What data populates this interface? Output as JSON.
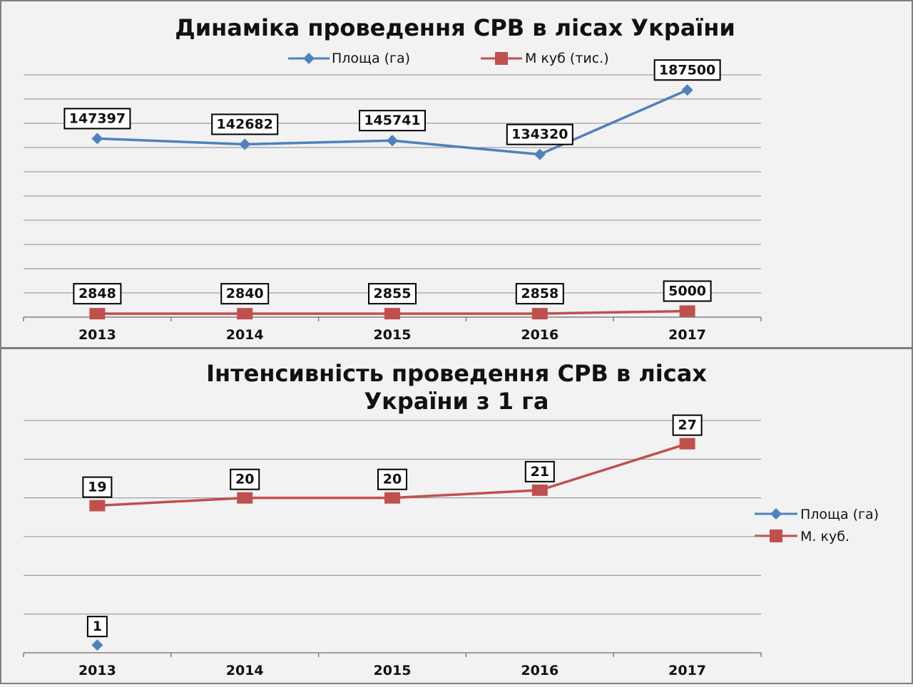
{
  "chart_data": [
    {
      "type": "line",
      "title": "Динаміка проведення СРВ в лісах України",
      "categories": [
        "2013",
        "2014",
        "2015",
        "2016",
        "2017"
      ],
      "series": [
        {
          "name": "Площа (га)",
          "values": [
            147397,
            142682,
            145741,
            134320,
            187500
          ],
          "labels": [
            "147397",
            "142682",
            "145741",
            "134320",
            "187500"
          ],
          "color": "#4f81bd",
          "marker": "diamond"
        },
        {
          "name": "М куб (тис.)",
          "values": [
            2848,
            2840,
            2855,
            2858,
            5000
          ],
          "labels": [
            "2848",
            "2840",
            "2855",
            "2858",
            "5000"
          ],
          "color": "#c0504d",
          "marker": "square"
        }
      ],
      "ylim": [
        0,
        200000
      ],
      "grid": true,
      "legend": "top"
    },
    {
      "type": "line",
      "title_lines": [
        "Інтенсивність проведення СРВ в лісах",
        "України з 1 га"
      ],
      "categories": [
        "2013",
        "2014",
        "2015",
        "2016",
        "2017"
      ],
      "series": [
        {
          "name": "Площа (га)",
          "values": [
            1,
            null,
            null,
            null,
            null
          ],
          "labels": [
            "1",
            "",
            "",
            "",
            ""
          ],
          "color": "#4f81bd",
          "marker": "diamond"
        },
        {
          "name": "М. куб.",
          "values": [
            19,
            20,
            20,
            21,
            27
          ],
          "labels": [
            "19",
            "20",
            "20",
            "21",
            "27"
          ],
          "color": "#c0504d",
          "marker": "square"
        }
      ],
      "ylim": [
        0,
        30
      ],
      "grid": true,
      "legend": "right"
    }
  ]
}
